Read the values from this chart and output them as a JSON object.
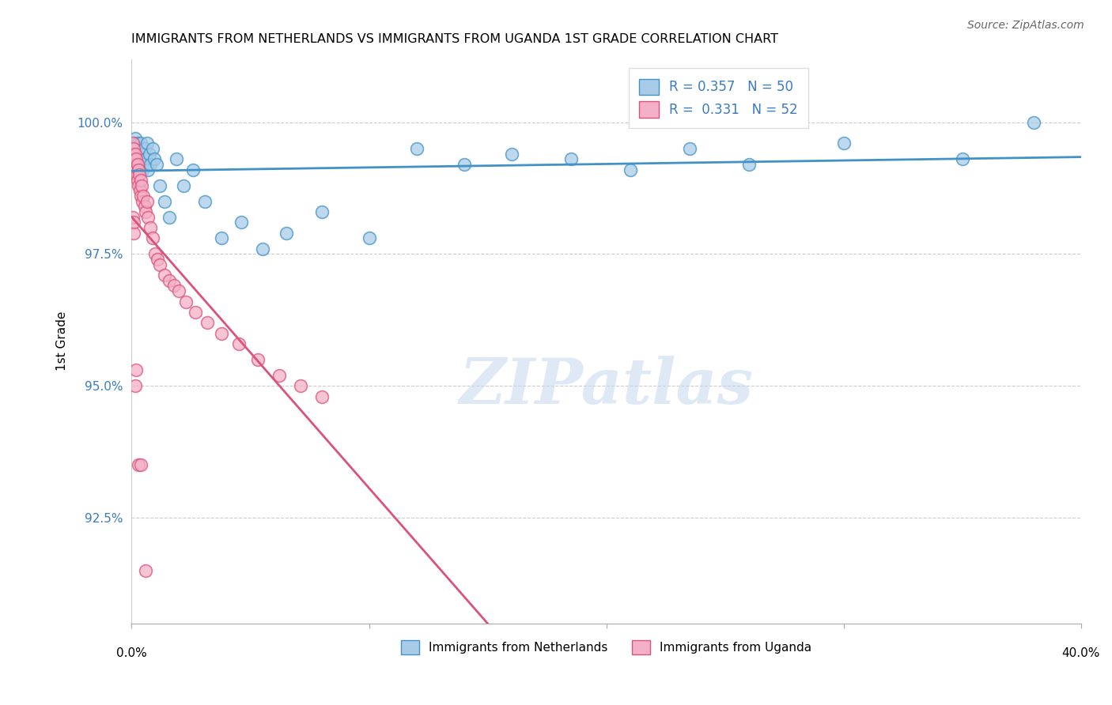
{
  "title": "IMMIGRANTS FROM NETHERLANDS VS IMMIGRANTS FROM UGANDA 1ST GRADE CORRELATION CHART",
  "source": "Source: ZipAtlas.com",
  "ylabel": "1st Grade",
  "y_ticks": [
    92.5,
    95.0,
    97.5,
    100.0
  ],
  "y_tick_labels": [
    "92.5%",
    "95.0%",
    "97.5%",
    "100.0%"
  ],
  "x_left_label": "0.0%",
  "x_right_label": "40.0%",
  "xlim": [
    0.0,
    40.0
  ],
  "ylim": [
    90.5,
    101.2
  ],
  "netherlands_color": "#a8cce8",
  "netherlands_edge": "#4292c6",
  "uganda_color": "#f4b0c8",
  "uganda_edge": "#d9537a",
  "R_netherlands": "0.357",
  "N_netherlands": "50",
  "R_uganda": "0.331",
  "N_uganda": "52",
  "legend_label_netherlands": "Immigrants from Netherlands",
  "legend_label_uganda": "Immigrants from Uganda",
  "watermark_text": "ZIPatlas",
  "nl_x": [
    0.05,
    0.08,
    0.1,
    0.12,
    0.14,
    0.16,
    0.18,
    0.2,
    0.22,
    0.25,
    0.28,
    0.3,
    0.33,
    0.36,
    0.4,
    0.44,
    0.48,
    0.52,
    0.56,
    0.6,
    0.65,
    0.7,
    0.75,
    0.8,
    0.88,
    0.95,
    1.05,
    1.2,
    1.4,
    1.6,
    1.9,
    2.2,
    2.6,
    3.1,
    3.8,
    4.6,
    5.5,
    6.5,
    8.0,
    10.0,
    12.0,
    14.0,
    16.0,
    18.5,
    21.0,
    23.5,
    26.0,
    30.0,
    35.0,
    38.0
  ],
  "nl_y": [
    99.5,
    99.3,
    99.6,
    99.2,
    99.7,
    99.4,
    99.1,
    99.5,
    99.3,
    99.6,
    99.4,
    99.2,
    99.5,
    99.3,
    99.6,
    99.1,
    99.4,
    99.2,
    99.5,
    99.3,
    99.6,
    99.1,
    99.4,
    99.2,
    99.5,
    99.3,
    99.2,
    98.8,
    98.5,
    98.2,
    99.3,
    98.8,
    99.1,
    98.5,
    97.8,
    98.1,
    97.6,
    97.9,
    98.3,
    97.8,
    99.5,
    99.2,
    99.4,
    99.3,
    99.1,
    99.5,
    99.2,
    99.6,
    99.3,
    100.0
  ],
  "ug_x": [
    0.02,
    0.04,
    0.06,
    0.08,
    0.1,
    0.12,
    0.14,
    0.16,
    0.18,
    0.2,
    0.22,
    0.24,
    0.26,
    0.28,
    0.3,
    0.32,
    0.35,
    0.38,
    0.4,
    0.43,
    0.46,
    0.5,
    0.55,
    0.6,
    0.65,
    0.7,
    0.8,
    0.9,
    1.0,
    1.1,
    1.2,
    1.4,
    1.6,
    1.8,
    2.0,
    2.3,
    2.7,
    3.2,
    3.8,
    4.5,
    5.3,
    6.2,
    7.1,
    8.0,
    0.05,
    0.07,
    0.09,
    0.15,
    0.2,
    0.3,
    0.4,
    0.6
  ],
  "ug_y": [
    99.5,
    99.6,
    99.3,
    99.4,
    99.5,
    99.3,
    99.2,
    99.4,
    99.1,
    99.3,
    99.0,
    99.2,
    98.9,
    99.1,
    98.8,
    99.0,
    98.7,
    98.9,
    98.6,
    98.8,
    98.5,
    98.6,
    98.4,
    98.3,
    98.5,
    98.2,
    98.0,
    97.8,
    97.5,
    97.4,
    97.3,
    97.1,
    97.0,
    96.9,
    96.8,
    96.6,
    96.4,
    96.2,
    96.0,
    95.8,
    95.5,
    95.2,
    95.0,
    94.8,
    98.2,
    97.9,
    98.1,
    95.0,
    95.3,
    93.5,
    93.5,
    91.5
  ]
}
